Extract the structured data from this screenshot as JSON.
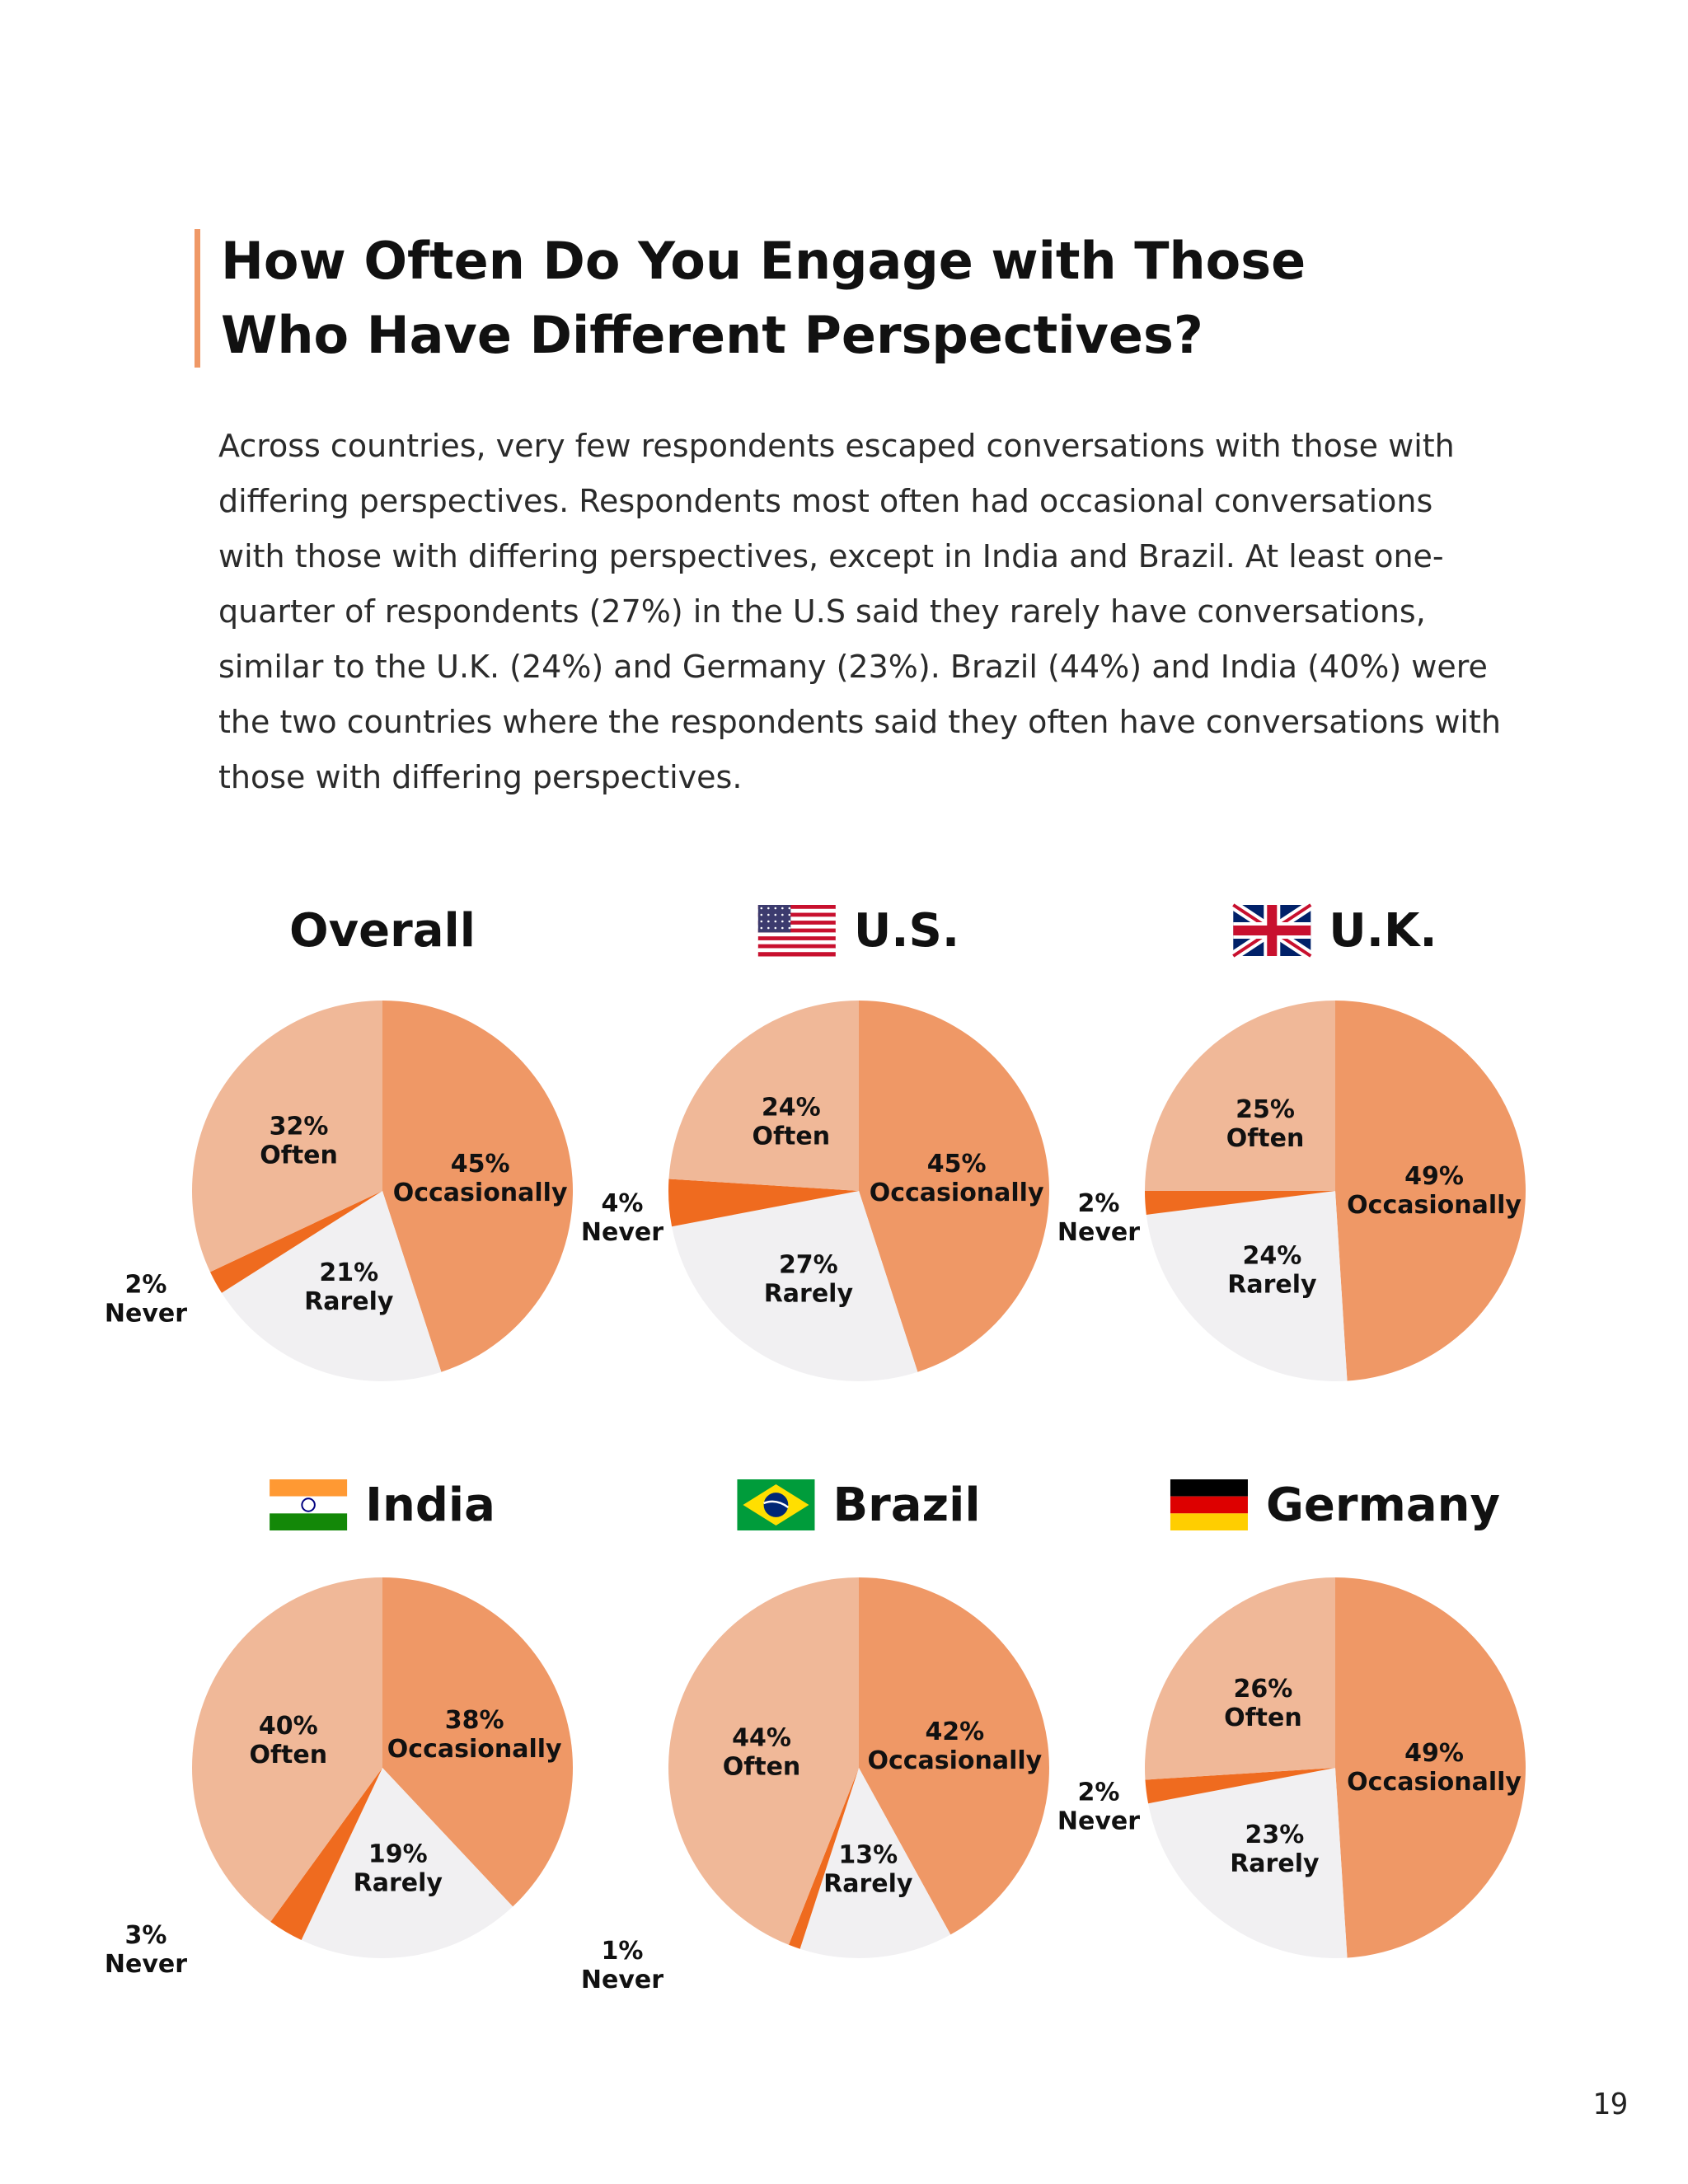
{
  "header": {
    "title_line1": "How Often Do You Engage with Those",
    "title_line2": "Who Have Different Perspectives?",
    "body": "Across countries, very few respondents escaped conversations with those with differing perspectives. Respondents most often had occasional conversations with those with differing perspectives, except in India and Brazil. At least one-quarter of respondents (27%) in the U.S said they rarely have conversations, similar to the U.K. (24%) and Germany (23%). Brazil (44%) and India (40%) were the two countries where the respondents said they often have conversations with those with differing perspectives."
  },
  "page_number": "19",
  "colors": {
    "Occasionally": "#ef9866",
    "Rarely": "#f1f0f2",
    "Never": "#ef6b1f",
    "Often": "#f0b898"
  },
  "chart_data": [
    {
      "type": "pie",
      "title": "Overall",
      "flag": null,
      "categories": [
        "Occasionally",
        "Rarely",
        "Never",
        "Often"
      ],
      "values": [
        45,
        21,
        2,
        32
      ],
      "labels": [
        "45%",
        "21%",
        "2%",
        "32%"
      ]
    },
    {
      "type": "pie",
      "title": "U.S.",
      "flag": "us-flag-icon",
      "categories": [
        "Occasionally",
        "Rarely",
        "Never",
        "Often"
      ],
      "values": [
        45,
        27,
        4,
        24
      ],
      "labels": [
        "45%",
        "27%",
        "4%",
        "24%"
      ]
    },
    {
      "type": "pie",
      "title": "U.K.",
      "flag": "uk-flag-icon",
      "categories": [
        "Occasionally",
        "Rarely",
        "Never",
        "Often"
      ],
      "values": [
        49,
        24,
        2,
        25
      ],
      "labels": [
        "49%",
        "24%",
        "2%",
        "25%"
      ]
    },
    {
      "type": "pie",
      "title": "India",
      "flag": "india-flag-icon",
      "categories": [
        "Occasionally",
        "Rarely",
        "Never",
        "Often"
      ],
      "values": [
        38,
        19,
        3,
        40
      ],
      "labels": [
        "38%",
        "19%",
        "3%",
        "40%"
      ]
    },
    {
      "type": "pie",
      "title": "Brazil",
      "flag": "brazil-flag-icon",
      "categories": [
        "Occasionally",
        "Rarely",
        "Never",
        "Often"
      ],
      "values": [
        42,
        13,
        1,
        44
      ],
      "labels": [
        "42%",
        "13%",
        "1%",
        "44%"
      ]
    },
    {
      "type": "pie",
      "title": "Germany",
      "flag": "germany-flag-icon",
      "categories": [
        "Occasionally",
        "Rarely",
        "Never",
        "Often"
      ],
      "values": [
        49,
        23,
        2,
        26
      ],
      "labels": [
        "49%",
        "23%",
        "2%",
        "26%"
      ]
    }
  ]
}
